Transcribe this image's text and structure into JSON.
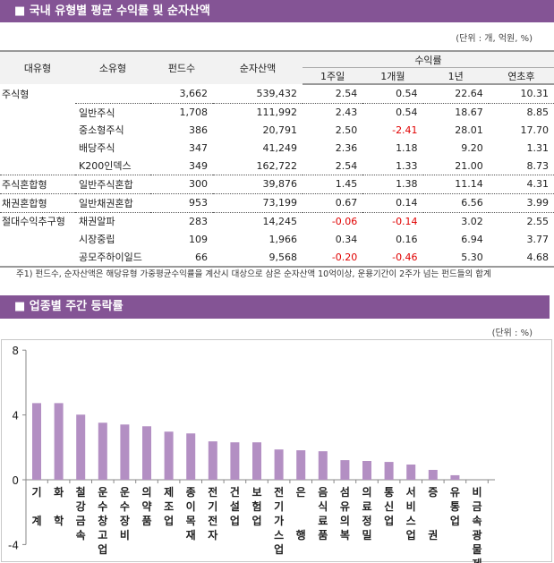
{
  "section1": {
    "title": "■ 국내 유형별 평균 수익률 및 순자산액",
    "unit": "(단위 : 개, 억원, %)",
    "headers": {
      "major": "대유형",
      "minor": "소유형",
      "funds": "펀드수",
      "assets": "순자산액",
      "returns": "수익률",
      "w1": "1주일",
      "m1": "1개월",
      "y1": "1년",
      "ytd": "연초후"
    },
    "rows": [
      {
        "major": "주식형",
        "minor": "",
        "funds": "3,662",
        "assets": "539,432",
        "w1": "2.54",
        "m1": "0.54",
        "y1": "22.64",
        "ytd": "10.31"
      },
      {
        "major": "",
        "minor": "일반주식",
        "funds": "1,708",
        "assets": "111,992",
        "w1": "2.43",
        "m1": "0.54",
        "y1": "18.67",
        "ytd": "8.85"
      },
      {
        "major": "",
        "minor": "중소형주식",
        "funds": "386",
        "assets": "20,791",
        "w1": "2.50",
        "m1": "-2.41",
        "y1": "28.01",
        "ytd": "17.70"
      },
      {
        "major": "",
        "minor": "배당주식",
        "funds": "347",
        "assets": "41,249",
        "w1": "2.36",
        "m1": "1.18",
        "y1": "9.20",
        "ytd": "1.31"
      },
      {
        "major": "",
        "minor": "K200인덱스",
        "funds": "349",
        "assets": "162,722",
        "w1": "2.54",
        "m1": "1.33",
        "y1": "21.00",
        "ytd": "8.73"
      },
      {
        "major": "주식혼합형",
        "minor": "일반주식혼합",
        "funds": "300",
        "assets": "39,876",
        "w1": "1.45",
        "m1": "1.38",
        "y1": "11.14",
        "ytd": "4.31"
      },
      {
        "major": "채권혼합형",
        "minor": "일반채권혼합",
        "funds": "953",
        "assets": "73,199",
        "w1": "0.67",
        "m1": "0.14",
        "y1": "6.56",
        "ytd": "3.99"
      },
      {
        "major": "절대수익추구형",
        "minor": "채권알파",
        "funds": "283",
        "assets": "14,245",
        "w1": "-0.06",
        "m1": "-0.14",
        "y1": "3.02",
        "ytd": "2.55"
      },
      {
        "major": "",
        "minor": "시장중립",
        "funds": "109",
        "assets": "1,966",
        "w1": "0.34",
        "m1": "0.16",
        "y1": "6.94",
        "ytd": "3.77"
      },
      {
        "major": "",
        "minor": "공모주하이일드",
        "funds": "66",
        "assets": "9,568",
        "w1": "-0.20",
        "m1": "-0.46",
        "y1": "5.30",
        "ytd": "4.68"
      }
    ],
    "footnote": "주1) 펀드수, 순자산액은 해당유형 가중평균수익률을 계산시 대상으로 삼은 순자산액 10억이상, 운용기간이 2주가 넘는 펀드들의 합계"
  },
  "section2": {
    "title": "■ 업종별 주간 등락률",
    "unit": "(단위 : %)"
  },
  "colors": {
    "header": "#845495",
    "bar": "#b38fc3",
    "negative": "#e00000"
  },
  "chart_data": {
    "type": "bar",
    "categories": [
      "기 계",
      "화 학",
      "철강금속",
      "운수창고업",
      "운수장비",
      "의약품",
      "제조업",
      "종이목재",
      "전기전자",
      "건설업",
      "보험업",
      "전기가스업",
      "은  행",
      "음식료품",
      "섬유의복",
      "의료정밀",
      "통신업",
      "서비스업",
      "증  권",
      "유통업",
      "비금속광물제품"
    ],
    "values": [
      4.73,
      4.73,
      4.02,
      3.52,
      3.41,
      3.3,
      2.97,
      2.86,
      2.37,
      2.31,
      2.31,
      1.87,
      1.82,
      1.76,
      1.21,
      1.16,
      1.1,
      0.94,
      0.61,
      0.28,
      0.0
    ],
    "yticks": [
      "8",
      "4",
      "0",
      "-4"
    ],
    "ylim": [
      -4,
      8
    ],
    "grid": false
  }
}
